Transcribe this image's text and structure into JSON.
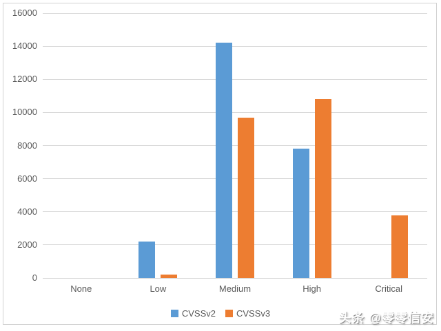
{
  "chart_data": {
    "type": "bar",
    "title": "",
    "categories": [
      "None",
      "Low",
      "Medium",
      "High",
      "Critical"
    ],
    "series": [
      {
        "name": "CVSSv2",
        "color": "#5B9BD5",
        "values": [
          0,
          2200,
          14200,
          7800,
          0
        ]
      },
      {
        "name": "CVSSv3",
        "color": "#ED7D31",
        "values": [
          0,
          200,
          9700,
          10800,
          3800
        ]
      }
    ],
    "xlabel": "",
    "ylabel": "",
    "ylim": [
      0,
      16000
    ],
    "ytick_step": 2000,
    "grid": true,
    "legend_position": "bottom",
    "legend_labels": [
      "CVSSv2",
      "CVSSv3"
    ]
  },
  "watermark": {
    "text": "头条 @零零信安"
  },
  "colors": {
    "grid": "#D9D9D9",
    "axis_text": "#595959",
    "frame": "#D2D2D2",
    "background": "#FFFFFF"
  }
}
